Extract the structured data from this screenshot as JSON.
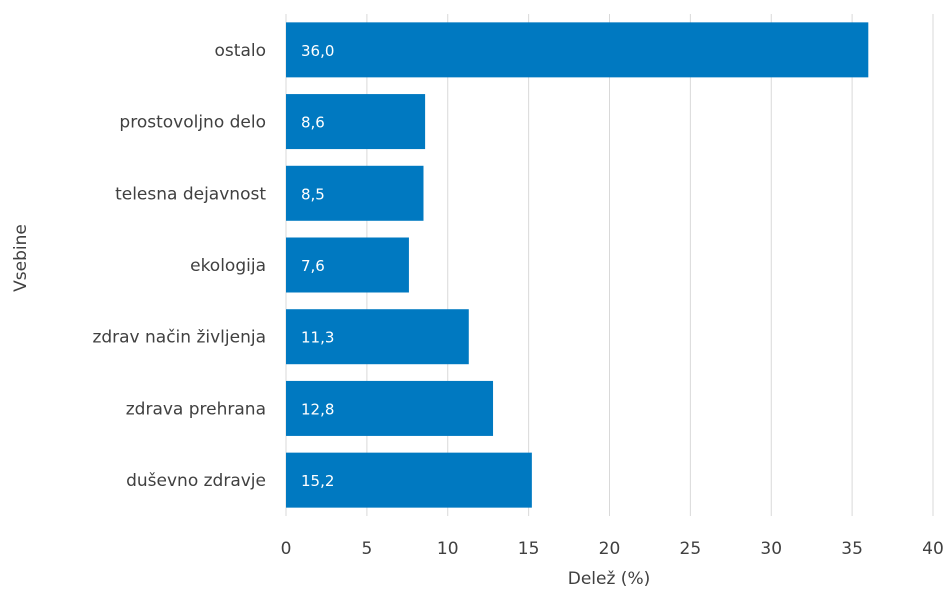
{
  "chart_data": {
    "type": "bar",
    "orientation": "horizontal",
    "categories": [
      "ostalo",
      "prostovoljno delo",
      "telesna dejavnost",
      "ekologija",
      "zdrav način življenja",
      "zdrava prehrana",
      "duševno zdravje"
    ],
    "values": [
      36.0,
      8.6,
      8.5,
      7.6,
      11.3,
      12.8,
      15.2
    ],
    "data_labels": [
      "36,0",
      "8,6",
      "8,5",
      "7,6",
      "11,3",
      "12,8",
      "15,2"
    ],
    "xlabel": "Delež (%)",
    "ylabel": "Vsebine",
    "xlim": [
      0,
      40
    ],
    "xticks": [
      0,
      5,
      10,
      15,
      20,
      25,
      30,
      35,
      40
    ],
    "grid": "vertical",
    "legend": "none",
    "bar_color": "#0079C1"
  }
}
